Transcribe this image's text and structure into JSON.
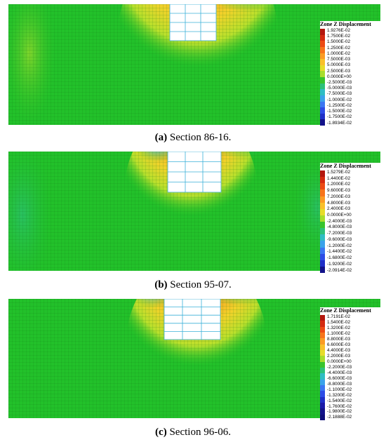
{
  "panels": [
    {
      "legend_title": "Zone Z Displacement",
      "ticks": [
        "1.9276E-02",
        "1.7500E-02",
        "1.5000E-02",
        "1.2500E-02",
        "1.0000E-02",
        "7.5000E-03",
        "5.0000E-03",
        "2.5000E-03",
        "0.0000E+00",
        "-2.5000E-03",
        "-5.0000E-03",
        "-7.5000E-03",
        "-1.0000E-02",
        "-1.2500E-02",
        "-1.5000E-02",
        "-1.7500E-02",
        "-1.8934E-02"
      ],
      "caption_label": "(a)",
      "caption_text": "Section 86-16."
    },
    {
      "legend_title": "Zone Z Displacement",
      "ticks": [
        "1.5279E-02",
        "1.4400E-02",
        "1.2000E-02",
        "9.6000E-03",
        "7.2000E-03",
        "4.8000E-03",
        "2.4000E-03",
        "0.0000E+00",
        "-2.4000E-03",
        "-4.8000E-03",
        "-7.2000E-03",
        "-9.6000E-03",
        "-1.2000E-02",
        "-1.4400E-02",
        "-1.6800E-02",
        "-1.9200E-02",
        "-2.0914E-02"
      ],
      "caption_label": "(b)",
      "caption_text": "Section 95-07."
    },
    {
      "legend_title": "Zone Z Displacement",
      "ticks": [
        "1.7191E-02",
        "1.5400E-02",
        "1.3200E-02",
        "1.1000E-02",
        "8.8000E-03",
        "6.6000E-03",
        "4.4000E-03",
        "2.2000E-03",
        "0.0000E+00",
        "-2.2000E-03",
        "-4.4000E-03",
        "-6.6000E-03",
        "-8.8000E-03",
        "-1.1000E-02",
        "-1.3200E-02",
        "-1.5400E-02",
        "-1.7600E-02",
        "-1.9800E-02",
        "-2.1888E-02"
      ],
      "caption_label": "(c)",
      "caption_text": "Section 96-06."
    }
  ],
  "colors": {
    "mesh_green": "#22c12a",
    "grid_line": "#0f6f16",
    "scale": [
      "#b4170e",
      "#d42a10",
      "#ec4a14",
      "#f7741b",
      "#fb9b24",
      "#f9c02a",
      "#e6dc2a",
      "#a8dd2c",
      "#38c42d",
      "#2dc17a",
      "#2fbdc4",
      "#3aa2ea",
      "#3b76f2",
      "#2d4ce6",
      "#1f2fc8",
      "#1a1aa8",
      "#12128a"
    ]
  }
}
